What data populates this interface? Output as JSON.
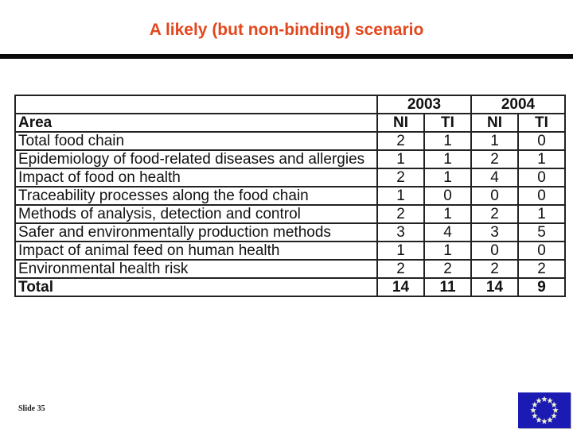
{
  "title": {
    "text": "A likely (but non-binding) scenario",
    "color": "#e2471d"
  },
  "table": {
    "area_header": "Area",
    "year_headers": [
      "2003",
      "2004"
    ],
    "col_headers": [
      "NI",
      "TI",
      "NI",
      "TI"
    ],
    "rows": [
      {
        "area": "Total food chain",
        "values": [
          2,
          1,
          1,
          0
        ]
      },
      {
        "area": "Epidemiology of food-related diseases and allergies",
        "values": [
          1,
          1,
          2,
          1
        ]
      },
      {
        "area": "Impact of food on health",
        "values": [
          2,
          1,
          4,
          0
        ]
      },
      {
        "area": "Traceability processes along the food chain",
        "values": [
          1,
          0,
          0,
          0
        ]
      },
      {
        "area": "Methods of analysis, detection and control",
        "values": [
          2,
          1,
          2,
          1
        ]
      },
      {
        "area": "Safer and environmentally production methods",
        "values": [
          3,
          4,
          3,
          5
        ]
      },
      {
        "area": "Impact of animal feed on human health",
        "values": [
          1,
          1,
          0,
          0
        ]
      },
      {
        "area": "Environmental health risk",
        "values": [
          2,
          2,
          2,
          2
        ]
      }
    ],
    "total": {
      "area": "Total",
      "values": [
        14,
        11,
        14,
        9
      ]
    }
  },
  "footer": {
    "slide_label": "Slide 35"
  },
  "flag": {
    "name": "european-union-flag",
    "field_color": "#1b1bb4",
    "star_color": "#eef3cf"
  }
}
